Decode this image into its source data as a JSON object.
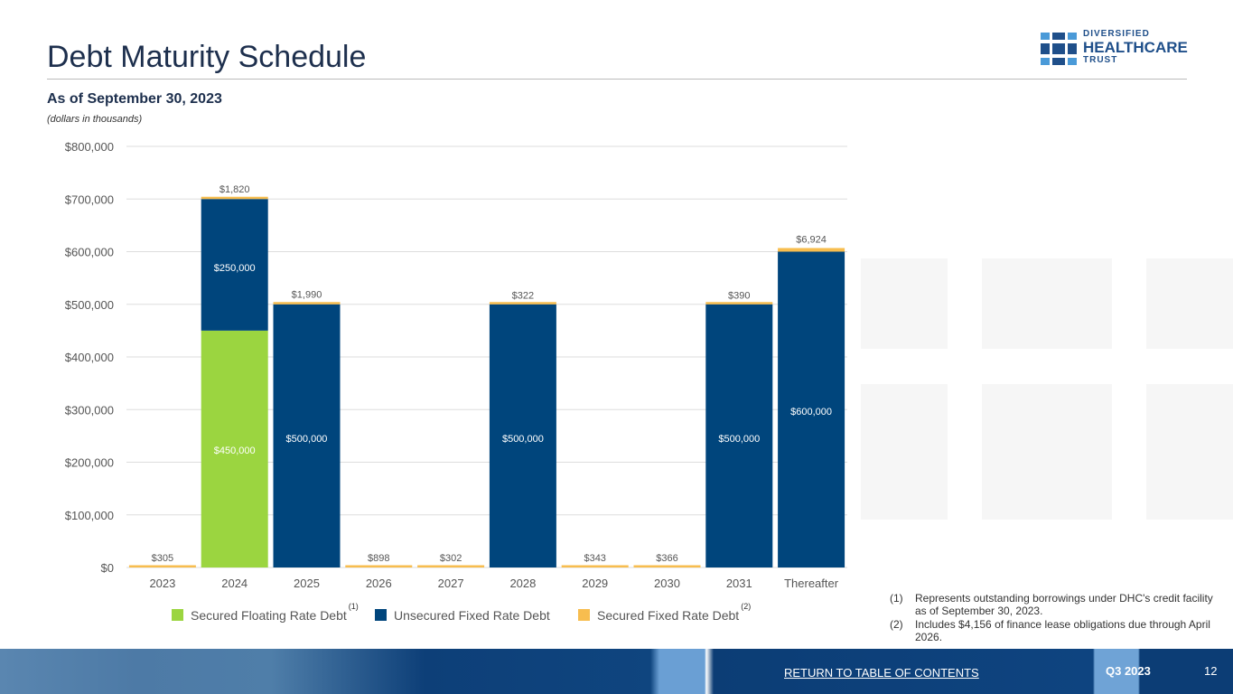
{
  "header": {
    "title": "Debt Maturity Schedule",
    "subtitle": "As of September 30, 2023",
    "units": "(dollars in thousands)"
  },
  "logo": {
    "line1": "DIVERSIFIED",
    "line2": "HEALTHCARE",
    "line3": "TRUST"
  },
  "chart_data": {
    "type": "bar",
    "stacked": true,
    "categories": [
      "2023",
      "2024",
      "2025",
      "2026",
      "2027",
      "2028",
      "2029",
      "2030",
      "2031",
      "Thereafter"
    ],
    "ylim": [
      0,
      800000
    ],
    "yticks": [
      0,
      100000,
      200000,
      300000,
      400000,
      500000,
      600000,
      700000,
      800000
    ],
    "ytick_labels": [
      "$0",
      "$100,000",
      "$200,000",
      "$300,000",
      "$400,000",
      "$500,000",
      "$600,000",
      "$700,000",
      "$800,000"
    ],
    "grid": true,
    "legend_placement": "bottom",
    "series": [
      {
        "name": "Secured Floating Rate Debt",
        "superscript": "(1)",
        "color": "#9bd540",
        "values": [
          0,
          450000,
          0,
          0,
          0,
          0,
          0,
          0,
          0,
          0
        ],
        "labels": [
          "",
          "$450,000",
          "",
          "",
          "",
          "",
          "",
          "",
          "",
          ""
        ]
      },
      {
        "name": "Unsecured Fixed Rate Debt",
        "superscript": "",
        "color": "#00457c",
        "values": [
          0,
          250000,
          500000,
          0,
          0,
          500000,
          0,
          0,
          500000,
          600000
        ],
        "labels": [
          "",
          "$250,000",
          "$500,000",
          "",
          "",
          "$500,000",
          "",
          "",
          "$500,000",
          "$600,000"
        ]
      },
      {
        "name": "Secured Fixed Rate Debt",
        "superscript": "(2)",
        "color": "#f7bd4f",
        "values": [
          305,
          1820,
          1990,
          898,
          302,
          322,
          343,
          366,
          390,
          6924
        ],
        "labels": [
          "$305",
          "$1,820",
          "$1,990",
          "$898",
          "$302",
          "$322",
          "$343",
          "$366",
          "$390",
          "$6,924"
        ]
      }
    ]
  },
  "notes": [
    {
      "num": "(1)",
      "text": "Represents outstanding borrowings under DHC's credit facility as of September 30, 2023."
    },
    {
      "num": "(2)",
      "text": "Includes $4,156 of finance lease obligations due through April 2026."
    }
  ],
  "footer": {
    "link": "RETURN TO TABLE OF CONTENTS",
    "quarter": "Q3 2023",
    "page": "12"
  }
}
